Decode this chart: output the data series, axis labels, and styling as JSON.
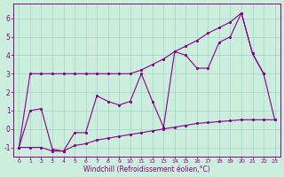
{
  "xlabel": "Windchill (Refroidissement éolien,°C)",
  "background_color": "#cceedd",
  "line_color": "#880088",
  "xlim": [
    -0.5,
    23.5
  ],
  "ylim": [
    -1.5,
    6.8
  ],
  "xticks": [
    0,
    1,
    2,
    3,
    4,
    5,
    6,
    7,
    8,
    9,
    10,
    11,
    12,
    13,
    14,
    15,
    16,
    17,
    18,
    19,
    20,
    21,
    22,
    23
  ],
  "yticks": [
    -1,
    0,
    1,
    2,
    3,
    4,
    5,
    6
  ],
  "series": [
    {
      "x": [
        0,
        1,
        2,
        3,
        4,
        5,
        6,
        7,
        8,
        9,
        10,
        11,
        12,
        13,
        14,
        15,
        16,
        17,
        18,
        19,
        20,
        21,
        22
      ],
      "y": [
        -1,
        3,
        3,
        3,
        3,
        3,
        3,
        3,
        3,
        3,
        3,
        3.2,
        3.5,
        3.8,
        4.2,
        4.5,
        4.8,
        5.2,
        5.5,
        5.8,
        6.3,
        4.1,
        3.0
      ]
    },
    {
      "x": [
        0,
        1,
        2,
        3,
        4,
        5,
        6,
        7,
        8,
        9,
        10,
        11,
        12,
        13,
        14,
        15,
        16,
        17,
        18,
        19,
        20,
        21,
        22,
        23
      ],
      "y": [
        -1,
        -1,
        -1,
        -1.2,
        -1.2,
        -0.9,
        -0.8,
        -0.6,
        -0.5,
        -0.4,
        -0.3,
        -0.2,
        -0.1,
        0.0,
        0.1,
        0.2,
        0.3,
        0.35,
        0.4,
        0.45,
        0.5,
        0.5,
        0.5,
        0.5
      ]
    },
    {
      "x": [
        0,
        1,
        2,
        3,
        4,
        5,
        6,
        7,
        8,
        9,
        10,
        11,
        12,
        13,
        14,
        15,
        16,
        17,
        18,
        19,
        20,
        21,
        22,
        23
      ],
      "y": [
        -1,
        1.0,
        1.1,
        -1.1,
        -1.2,
        -0.2,
        -0.2,
        1.8,
        1.5,
        1.3,
        1.5,
        3.0,
        1.5,
        0.1,
        4.2,
        4.0,
        3.3,
        3.3,
        4.7,
        5.0,
        6.3,
        4.1,
        3.0,
        0.5
      ]
    }
  ]
}
